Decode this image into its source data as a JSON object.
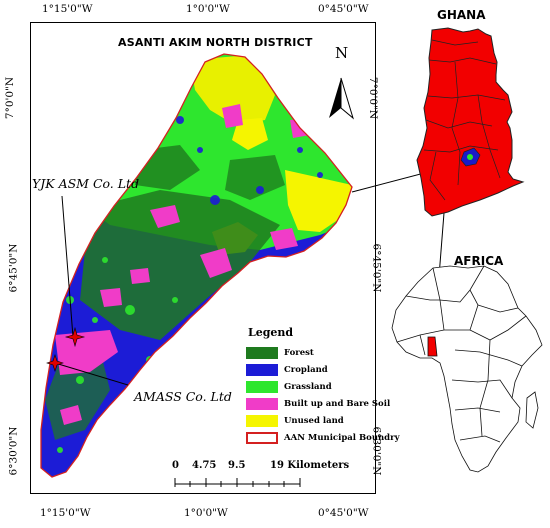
{
  "main_map": {
    "title": "ASANTI AKIM NORTH DISTRICT",
    "north_label": "N",
    "coords_top": [
      "1°15'0\"W",
      "1°0'0\"W",
      "0°45'0\"W"
    ],
    "coords_bottom": [
      "1°15'0\"W",
      "1°0'0\"W",
      "0°45'0\"W"
    ],
    "coords_left": [
      "7°0'0\"N",
      "6°45'0\"N",
      "6°30'0\"N"
    ],
    "coords_right": [
      "7°0'0\"N",
      "6°45'0\"N",
      "6°30'0\"N"
    ],
    "sites": [
      {
        "label": "YJK ASM Co. Ltd"
      },
      {
        "label": "AMASS Co. Ltd"
      }
    ]
  },
  "legend": {
    "title": "Legend",
    "items": [
      {
        "label": "Forest",
        "color": "#1e7a1e"
      },
      {
        "label": "Cropland",
        "color": "#1c1cd6"
      },
      {
        "label": "Grassland",
        "color": "#2ee62e"
      },
      {
        "label": "Built up and Bare Soil",
        "color": "#f03cc8"
      },
      {
        "label": "Unused land",
        "color": "#f5f500"
      },
      {
        "label": "AAN Municipal Boundry",
        "color": "#d42020"
      }
    ]
  },
  "scale_bar": {
    "ticks": [
      "0",
      "4.75",
      "9.5",
      "19 Kilometers"
    ]
  },
  "inset_ghana": {
    "title": "GHANA",
    "color": "#f20000"
  },
  "inset_africa": {
    "title": "AFRICA"
  }
}
